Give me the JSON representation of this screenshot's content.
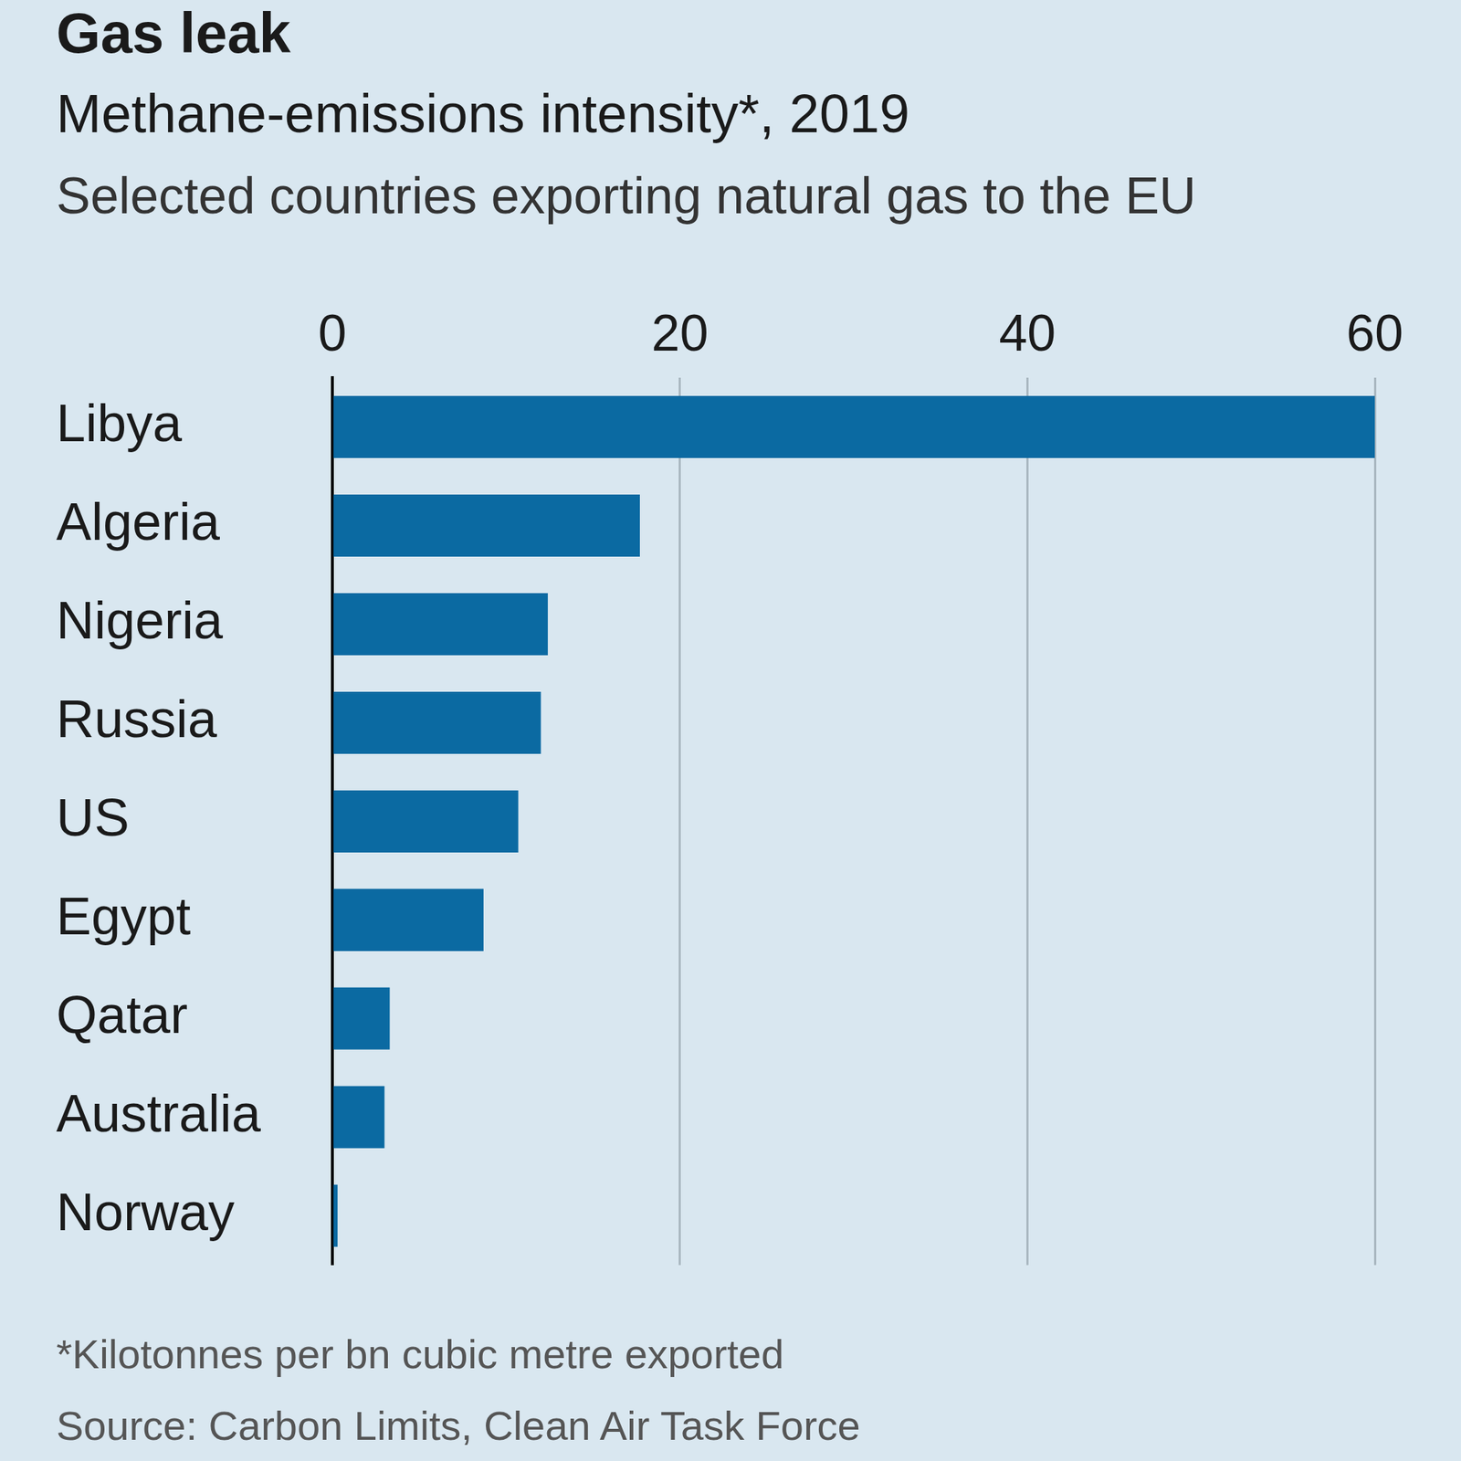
{
  "chart_data": {
    "type": "bar",
    "orientation": "horizontal",
    "title": "Gas leak",
    "subtitle": [
      "Methane-emissions intensity*, 2019",
      "Selected countries exporting natural gas to the EU"
    ],
    "footnotes": [
      "*Kilotonnes per bn cubic metre exported",
      "Source: Carbon Limits, Clean Air Task Force"
    ],
    "categories": [
      "Libya",
      "Algeria",
      "Nigeria",
      "Russia",
      "US",
      "Egypt",
      "Qatar",
      "Australia",
      "Norway"
    ],
    "values": [
      60,
      17.7,
      12.4,
      12,
      10.7,
      8.7,
      3.3,
      3,
      0.3
    ],
    "color": "#0b6aa2",
    "xlim": [
      0,
      60
    ],
    "xticks": [
      0,
      20,
      40,
      60
    ],
    "grid": true
  }
}
